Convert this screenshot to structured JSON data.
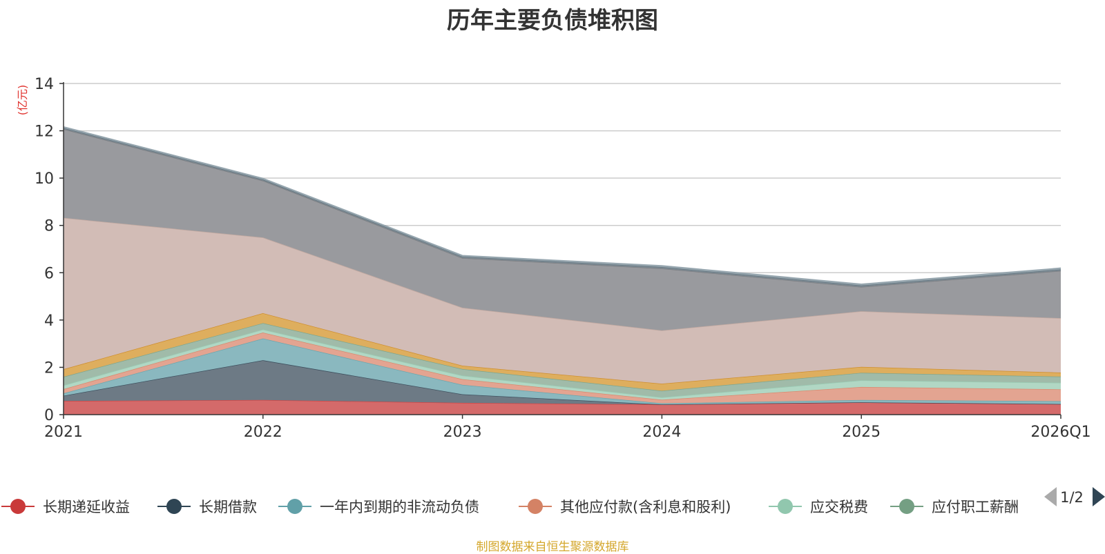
{
  "chart_data": {
    "type": "area",
    "title": "历年主要负债堆积图",
    "ylabel": "(亿元)",
    "x": [
      "2021",
      "2022",
      "2023",
      "2024",
      "2025",
      "2026Q1"
    ],
    "ylim": [
      0,
      14
    ],
    "yticks": [
      "0",
      "2",
      "4",
      "6",
      "8",
      "10",
      "12",
      "14"
    ],
    "stacked": true,
    "grid": true,
    "series": [
      {
        "name": "长期递延收益",
        "color": "#c93a3a",
        "fill": "#d46a6a",
        "values": [
          0.58,
          0.62,
          0.5,
          0.43,
          0.52,
          0.45
        ]
      },
      {
        "name": "长期借款",
        "color": "#2f4554",
        "fill": "#6d7a85",
        "values": [
          0.22,
          1.68,
          0.36,
          0.0,
          0.0,
          0.0
        ]
      },
      {
        "name": "一年内到期的非流动负债",
        "color": "#61a0a8",
        "fill": "#8ab8bf",
        "values": [
          0.1,
          0.92,
          0.4,
          0.05,
          0.1,
          0.12
        ]
      },
      {
        "name": "其他应付款(含利息和股利)",
        "color": "#d48265",
        "fill": "#e3a491",
        "values": [
          0.18,
          0.25,
          0.24,
          0.15,
          0.55,
          0.5
        ]
      },
      {
        "name": "应交税费",
        "color": "#91c7ae",
        "fill": "#b1d7c4",
        "values": [
          0.16,
          0.13,
          0.15,
          0.1,
          0.28,
          0.28
        ]
      },
      {
        "name": "应付职工薪酬",
        "color": "#749f83",
        "fill": "#a0bba9",
        "values": [
          0.36,
          0.27,
          0.28,
          0.28,
          0.32,
          0.26
        ]
      },
      {
        "name": "",
        "color": "#ca8622",
        "fill": "#deae5e",
        "values": [
          0.32,
          0.42,
          0.14,
          0.3,
          0.25,
          0.17
        ]
      },
      {
        "name": "",
        "color": "#bda29a",
        "fill": "#d2bcb6",
        "values": [
          6.4,
          3.2,
          2.45,
          2.25,
          2.35,
          2.3
        ]
      },
      {
        "name": "",
        "color": "#6e7074",
        "fill": "#999a9e",
        "values": [
          3.75,
          2.4,
          2.1,
          2.62,
          1.03,
          2.0
        ]
      },
      {
        "name": "",
        "color": "#546570",
        "fill": "#7f8d96",
        "values": [
          0.05,
          0.05,
          0.06,
          0.06,
          0.06,
          0.06
        ]
      },
      {
        "name": "",
        "color": "#8a9ba5",
        "fill": "#9aa9b1",
        "values": [
          0.05,
          0.05,
          0.05,
          0.06,
          0.06,
          0.06
        ]
      }
    ]
  },
  "legend": {
    "visible_items": [
      "长期递延收益",
      "长期借款",
      "一年内到期的非流动负债",
      "其他应付款(含利息和股利)",
      "应交税费",
      "应付职工薪酬"
    ],
    "page_indicator": "1/2"
  },
  "footer": {
    "source": "制图数据来自恒生聚源数据库"
  }
}
